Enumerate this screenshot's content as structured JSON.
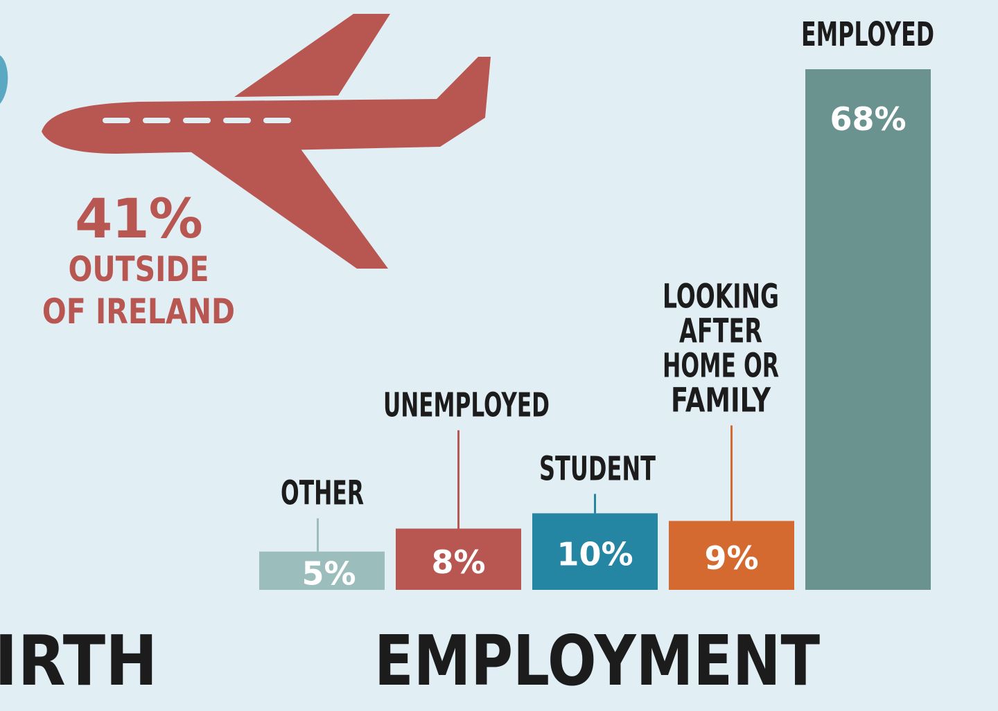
{
  "birth": {
    "title": "IRTH",
    "percent": "41%",
    "line1": "OUTSIDE",
    "line2": "OF IRELAND",
    "icon": "airplane-icon",
    "color": "#b85651"
  },
  "chart_data": {
    "type": "bar",
    "title": "EMPLOYMENT",
    "categories": [
      "OTHER",
      "UNEMPLOYED",
      "STUDENT",
      "LOOKING AFTER HOME OR FAMILY",
      "EMPLOYED"
    ],
    "label_lines": [
      [
        "OTHER"
      ],
      [
        "UNEMPLOYED"
      ],
      [
        "STUDENT"
      ],
      [
        "LOOKING",
        "AFTER",
        "HOME OR",
        "FAMILY"
      ],
      [
        "EMPLOYED"
      ]
    ],
    "values": [
      5,
      8,
      10,
      9,
      68
    ],
    "value_labels": [
      "5%",
      "8%",
      "10%",
      "9%",
      "68%"
    ],
    "colors": [
      "#9bbebc",
      "#b85651",
      "#2486a3",
      "#d46a30",
      "#6a938f"
    ],
    "ylim": [
      0,
      68
    ],
    "grid": false,
    "legend": "none"
  }
}
